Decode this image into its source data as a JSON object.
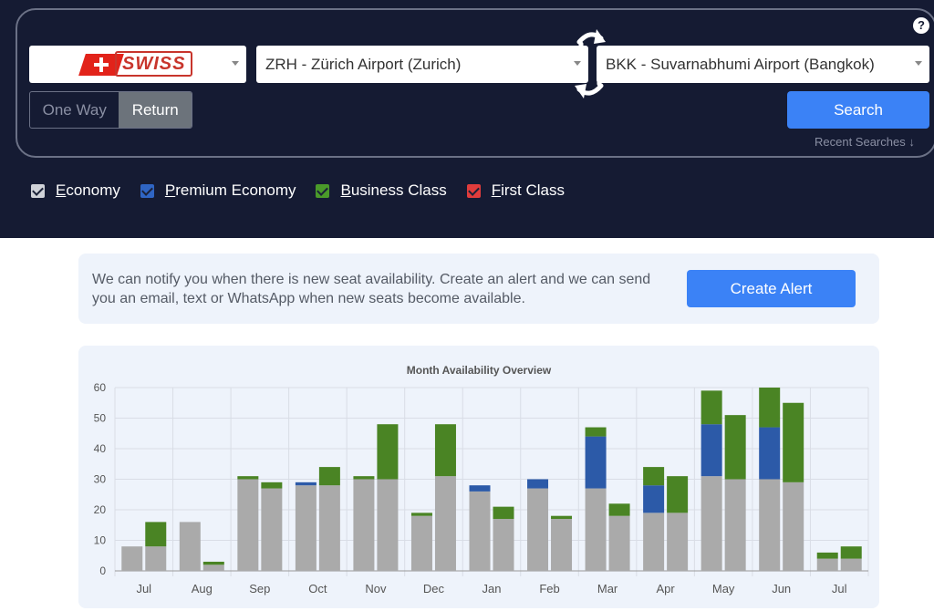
{
  "header": {
    "help_icon": "question-circle-icon",
    "airline": {
      "name": "SWISS",
      "logo_text": "SWISS",
      "accent": "#e2231a"
    },
    "origin": "ZRH - Zürich Airport (Zurich)",
    "destination": "BKK - Suvarnabhumi Airport (Bangkok)",
    "trip_type": {
      "one_way": "One Way",
      "return": "Return",
      "selected": "Return"
    },
    "search_label": "Search",
    "recent_searches": "Recent Searches"
  },
  "cabins": [
    {
      "label_u": "E",
      "label_rest": "conomy",
      "color": "#cfd2d8",
      "checked": true
    },
    {
      "label_u": "P",
      "label_rest": "remium Economy",
      "color": "#2f65c4",
      "checked": true
    },
    {
      "label_u": "B",
      "label_rest": "usiness Class",
      "color": "#4a9a2a",
      "checked": true
    },
    {
      "label_u": "F",
      "label_rest": "irst Class",
      "color": "#e03c3c",
      "checked": true
    }
  ],
  "alert": {
    "text": "We can notify you when there is new seat availability. Create an alert and we can send you an email, text or WhatsApp when new seats become available.",
    "button": "Create Alert"
  },
  "chart_data": {
    "type": "bar",
    "title": "Month Availability Overview",
    "stacked": true,
    "ylim": [
      0,
      60
    ],
    "yticks": [
      0,
      10,
      20,
      30,
      40,
      50,
      60
    ],
    "categories": [
      "Jul",
      "Aug",
      "Sep",
      "Oct",
      "Nov",
      "Dec",
      "Jan",
      "Feb",
      "Mar",
      "Apr",
      "May",
      "Jun",
      "Jul"
    ],
    "grid": true,
    "series": [
      {
        "name": "Economy",
        "color": "#aaaaaa",
        "values": [
          [
            8,
            8
          ],
          [
            16,
            2
          ],
          [
            30,
            27
          ],
          [
            28,
            28
          ],
          [
            30,
            30
          ],
          [
            18,
            31
          ],
          [
            26,
            17
          ],
          [
            27,
            17
          ],
          [
            27,
            18
          ],
          [
            19,
            19
          ],
          [
            31,
            30
          ],
          [
            30,
            29
          ],
          [
            4,
            4
          ]
        ]
      },
      {
        "name": "Premium Economy",
        "color": "#2c5aa8",
        "values": [
          [
            0,
            0
          ],
          [
            0,
            0
          ],
          [
            0,
            0
          ],
          [
            1,
            0
          ],
          [
            0,
            0
          ],
          [
            0,
            0
          ],
          [
            2,
            0
          ],
          [
            3,
            0
          ],
          [
            17,
            0
          ],
          [
            9,
            0
          ],
          [
            17,
            0
          ],
          [
            17,
            0
          ],
          [
            0,
            0
          ]
        ]
      },
      {
        "name": "Business Class",
        "color": "#4a8424",
        "values": [
          [
            0,
            8
          ],
          [
            0,
            1
          ],
          [
            1,
            2
          ],
          [
            0,
            6
          ],
          [
            1,
            18
          ],
          [
            1,
            17
          ],
          [
            0,
            4
          ],
          [
            0,
            1
          ],
          [
            3,
            4
          ],
          [
            6,
            12
          ],
          [
            11,
            21
          ],
          [
            13,
            26
          ],
          [
            2,
            4
          ]
        ]
      },
      {
        "name": "First Class",
        "color": "#e03c3c",
        "values": [
          [
            0,
            0
          ],
          [
            0,
            0
          ],
          [
            0,
            0
          ],
          [
            0,
            0
          ],
          [
            0,
            0
          ],
          [
            0,
            0
          ],
          [
            0,
            0
          ],
          [
            0,
            0
          ],
          [
            0,
            0
          ],
          [
            0,
            0
          ],
          [
            0,
            0
          ],
          [
            0,
            0
          ],
          [
            0,
            0
          ]
        ]
      }
    ]
  }
}
